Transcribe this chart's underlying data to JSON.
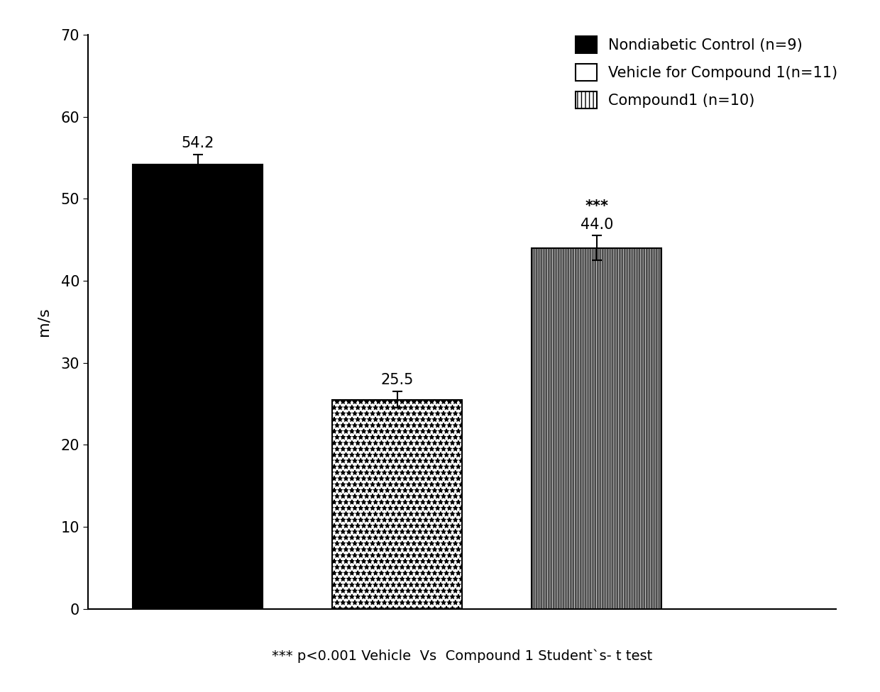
{
  "categories": [
    "Nondiabetic Control",
    "Vehicle for Compound 1",
    "Compound1"
  ],
  "values": [
    54.2,
    25.5,
    44.0
  ],
  "errors": [
    1.2,
    1.0,
    1.5
  ],
  "bar_positions": [
    1,
    2,
    3
  ],
  "bar_width": 0.65,
  "colors": [
    "black",
    "white",
    "white"
  ],
  "hatches": [
    "",
    "**",
    "|||||||"
  ],
  "ylabel": "m/s",
  "ylim": [
    0,
    70
  ],
  "yticks": [
    0,
    10,
    20,
    30,
    40,
    50,
    60,
    70
  ],
  "value_labels": [
    "54.2",
    "25.5",
    "44.0"
  ],
  "significance_label": "***",
  "significance_bar_index": 2,
  "xlabel_note": "*** p<0.001 Vehicle  Vs  Compound 1 Student`s- t test",
  "legend_labels": [
    "Nondiabetic Control (n=9)",
    "Vehicle for Compound 1(n=11)",
    "Compound1 (n=10)"
  ],
  "legend_hatches": [
    "",
    "",
    "|||"
  ],
  "legend_colors": [
    "black",
    "white",
    "white"
  ],
  "background_color": "#ffffff",
  "fontsize_ticks": 15,
  "fontsize_ylabel": 16,
  "fontsize_value": 15,
  "fontsize_legend": 15,
  "fontsize_xlabel_note": 14
}
